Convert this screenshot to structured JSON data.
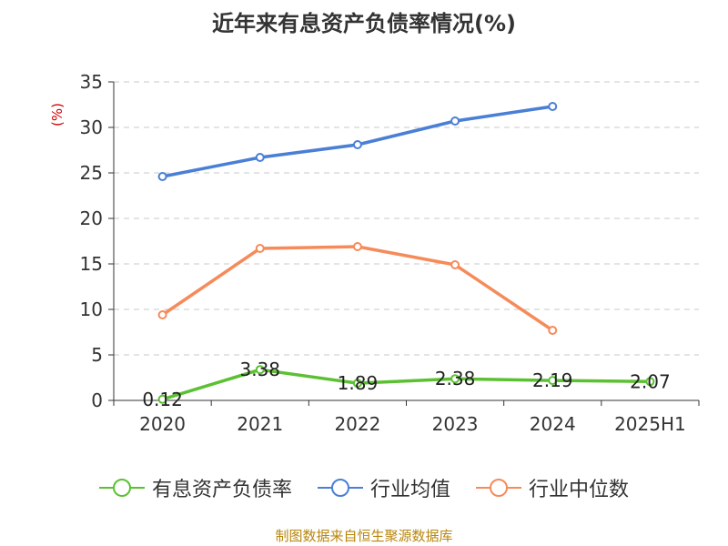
{
  "chart_data": {
    "type": "line",
    "title": "近年来有息资产负债率情况(%)",
    "ylabel": "(%)",
    "categories": [
      "2020",
      "2021",
      "2022",
      "2023",
      "2024",
      "2025H1"
    ],
    "ylim": [
      0,
      35
    ],
    "yticks": [
      "0",
      "5",
      "10",
      "15",
      "20",
      "25",
      "30",
      "35"
    ],
    "grid": true,
    "legend_position": "bottom",
    "series": [
      {
        "name": "有息资产负债率",
        "color": "#5cc132",
        "values": [
          0.12,
          3.38,
          1.89,
          2.38,
          2.19,
          2.07
        ],
        "labels": [
          "0.12",
          "3.38",
          "1.89",
          "2.38",
          "2.19",
          "2.07"
        ]
      },
      {
        "name": "行业均值",
        "color": "#4a7fd6",
        "values": [
          24.6,
          26.7,
          28.1,
          30.7,
          32.3,
          null
        ]
      },
      {
        "name": "行业中位数",
        "color": "#f58b5a",
        "values": [
          9.4,
          16.7,
          16.9,
          14.9,
          7.7,
          null
        ]
      }
    ]
  },
  "source": "制图数据来自恒生聚源数据库"
}
